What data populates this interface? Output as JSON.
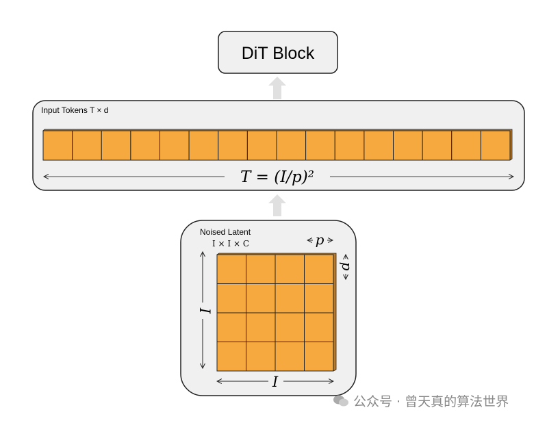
{
  "dit_block": {
    "label": "DiT Block"
  },
  "input_tokens": {
    "label": "Input Tokens T × d",
    "count": 16,
    "formula": "T = (I/p)²"
  },
  "noised_latent": {
    "label": "Noised Latent",
    "dims": "I × I × C",
    "grid": 4,
    "patch_label": "p",
    "side_label": "I"
  },
  "colors": {
    "token": "#F5A93F",
    "panel": "#F0F0F0",
    "arrow": "#E0E0E0"
  },
  "watermark": {
    "text": "公众号 · 曾天真的算法世界",
    "icon": "wechat-icon"
  }
}
